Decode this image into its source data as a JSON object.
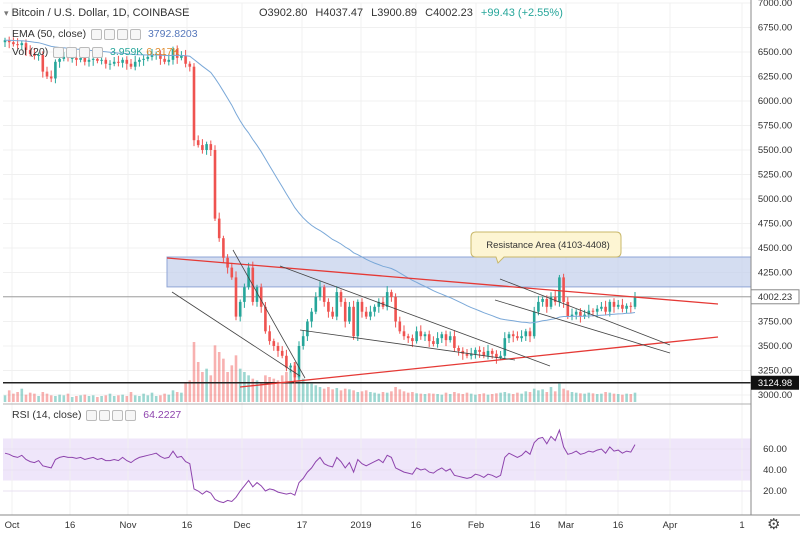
{
  "header": {
    "symbol": "Bitcoin / U.S. Dollar, 1D, COINBASE",
    "open": "O3902.80",
    "high": "H4037.47",
    "low": "L3900.89",
    "close": "C4002.23",
    "change": "+99.43 (+2.55%)"
  },
  "indicators": {
    "ema_label": "EMA (50, close)",
    "ema_value": "3792.8203",
    "vol_label": "Vol (20)",
    "vol_value1": "3.959K",
    "vol_value2": "6.317K",
    "rsi_label": "RSI (14, close)",
    "rsi_value": "64.2227"
  },
  "annotation": {
    "resistance": "Resistance Area (4103-4408)"
  },
  "price_labels": {
    "last": "4002.23",
    "support": "3124.98"
  },
  "colors": {
    "up": "#26a69a",
    "down": "#ef5350",
    "ema": "#7aa8d8",
    "resistance_fill": "#c5d2ec",
    "trend_red": "#e53935",
    "rsi": "#8e44ad",
    "rsi_band": "#efe6fa"
  },
  "chart_data": {
    "type": "candlestick",
    "interval": "1D",
    "x_ticks": [
      "Oct",
      "16",
      "Nov",
      "16",
      "Dec",
      "17",
      "2019",
      "16",
      "Feb",
      "16",
      "Mar",
      "16",
      "Apr",
      "1"
    ],
    "y_ticks": [
      3000,
      3250,
      3500,
      3750,
      4000,
      4250,
      4500,
      4750,
      5000,
      5250,
      5500,
      5750,
      6000,
      6250,
      6500,
      6750,
      7000
    ],
    "rsi_ticks": [
      "20.00",
      "40.00",
      "60.00"
    ],
    "resistance_area": [
      4103,
      4408
    ],
    "support_line": 3124.98,
    "last_price": 4002.23,
    "close_series": [
      6620,
      6600,
      6580,
      6570,
      6590,
      6520,
      6480,
      6460,
      6470,
      6300,
      6250,
      6230,
      6400,
      6430,
      6450,
      6440,
      6440,
      6420,
      6440,
      6400,
      6420,
      6430,
      6410,
      6420,
      6380,
      6380,
      6400,
      6390,
      6420,
      6380,
      6350,
      6400,
      6420,
      6430,
      6450,
      6470,
      6480,
      6430,
      6400,
      6420,
      6530,
      6440,
      6460,
      6380,
      6350,
      5600,
      5550,
      5500,
      5560,
      5500,
      4800,
      4600,
      4400,
      4300,
      4200,
      3800,
      3950,
      4100,
      4300,
      3950,
      4100,
      3900,
      3650,
      3550,
      3500,
      3450,
      3400,
      3280,
      3300,
      3180,
      3500,
      3600,
      3750,
      3850,
      4000,
      4100,
      3950,
      3850,
      3800,
      4050,
      3950,
      3750,
      3900,
      3600,
      3950,
      3850,
      3800,
      3850,
      3900,
      3950,
      3900,
      4050,
      4000,
      3750,
      3650,
      3600,
      3580,
      3550,
      3650,
      3600,
      3620,
      3550,
      3520,
      3580,
      3620,
      3560,
      3600,
      3480,
      3450,
      3420,
      3400,
      3420,
      3460,
      3440,
      3400,
      3450,
      3420,
      3380,
      3400,
      3580,
      3620,
      3600,
      3580,
      3600,
      3650,
      3600,
      3850,
      3950,
      3980,
      3900,
      4000,
      3950,
      4200,
      3950,
      3800,
      3820,
      3850,
      3800,
      3820,
      3860,
      3850,
      3880,
      3900,
      3850,
      3950,
      3900,
      3920,
      3880,
      3910,
      3900,
      4002
    ],
    "volume_series": [
      20,
      35,
      25,
      30,
      40,
      22,
      28,
      25,
      18,
      30,
      25,
      20,
      18,
      22,
      20,
      25,
      15,
      18,
      20,
      22,
      18,
      20,
      15,
      18,
      20,
      25,
      18,
      20,
      22,
      18,
      30,
      20,
      18,
      25,
      20,
      28,
      18,
      20,
      25,
      22,
      35,
      30,
      28,
      60,
      65,
      180,
      120,
      90,
      100,
      80,
      170,
      150,
      130,
      90,
      110,
      140,
      100,
      90,
      80,
      70,
      65,
      60,
      80,
      75,
      70,
      65,
      80,
      90,
      100,
      120,
      90,
      70,
      60,
      55,
      50,
      45,
      40,
      45,
      38,
      42,
      35,
      40,
      38,
      35,
      30,
      32,
      35,
      30,
      28,
      25,
      30,
      28,
      32,
      45,
      38,
      32,
      28,
      30,
      26,
      25,
      24,
      26,
      25,
      24,
      22,
      28,
      24,
      30,
      26,
      24,
      28,
      25,
      22,
      24,
      26,
      22,
      24,
      26,
      28,
      30,
      26,
      24,
      28,
      25,
      32,
      30,
      40,
      35,
      38,
      30,
      45,
      32,
      55,
      40,
      35,
      30,
      28,
      26,
      25,
      28,
      26,
      24,
      25,
      30,
      28,
      25,
      24,
      22,
      25,
      24,
      28
    ],
    "rsi_series": [
      56,
      55,
      53,
      52,
      54,
      50,
      48,
      47,
      49,
      44,
      43,
      42,
      50,
      52,
      53,
      52,
      52,
      51,
      52,
      50,
      51,
      52,
      50,
      51,
      49,
      49,
      50,
      49,
      52,
      49,
      47,
      50,
      52,
      53,
      54,
      55,
      56,
      53,
      51,
      52,
      58,
      52,
      53,
      48,
      46,
      22,
      20,
      17,
      20,
      18,
      12,
      10,
      9,
      11,
      10,
      14,
      20,
      25,
      30,
      24,
      28,
      25,
      20,
      22,
      21,
      19,
      18,
      17,
      18,
      16,
      28,
      32,
      38,
      42,
      48,
      52,
      46,
      44,
      43,
      52,
      48,
      42,
      47,
      38,
      50,
      46,
      44,
      46,
      48,
      50,
      47,
      54,
      52,
      42,
      40,
      38,
      37,
      36,
      42,
      40,
      41,
      38,
      37,
      40,
      42,
      39,
      41,
      35,
      34,
      33,
      32,
      33,
      36,
      35,
      33,
      36,
      35,
      33,
      35,
      52,
      56,
      54,
      52,
      54,
      58,
      55,
      66,
      70,
      71,
      65,
      72,
      68,
      78,
      62,
      55,
      56,
      58,
      55,
      56,
      58,
      57,
      59,
      60,
      56,
      62,
      58,
      59,
      56,
      58,
      57,
      64.2
    ]
  }
}
